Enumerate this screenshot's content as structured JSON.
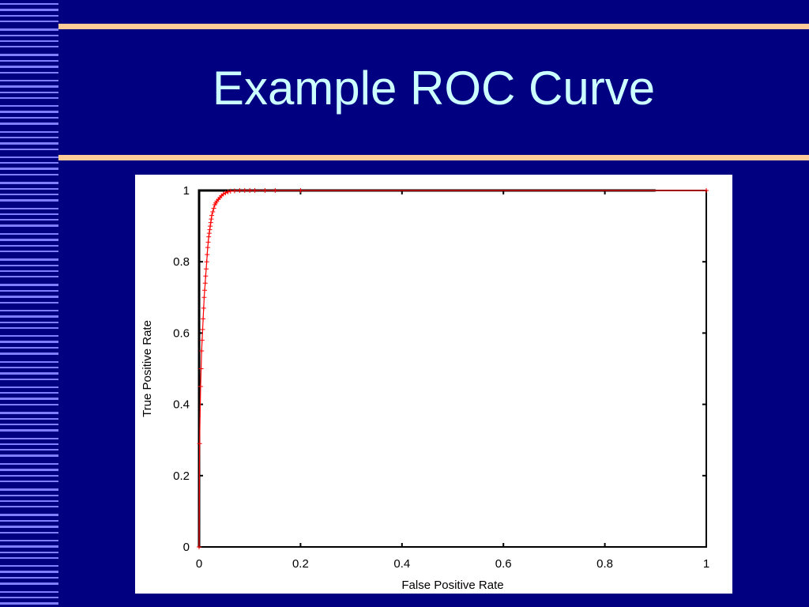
{
  "slide": {
    "title": "Example ROC Curve",
    "background_color": "#000080",
    "accent_color": "#FFCC99",
    "stripe_color": "#8080FF",
    "title_color": "#CCFFFF"
  },
  "chart_data": {
    "type": "line",
    "title": "",
    "xlabel": "False Positive Rate",
    "ylabel": "True Positive Rate",
    "xlim": [
      0,
      1
    ],
    "ylim": [
      0,
      1
    ],
    "x_ticks": [
      "0",
      "0.2",
      "0.4",
      "0.6",
      "0.8",
      "1"
    ],
    "y_ticks": [
      "0",
      "0.2",
      "0.4",
      "0.6",
      "0.8",
      "1"
    ],
    "grid": false,
    "legend": "none",
    "reference_lines": [
      {
        "points": [
          [
            0,
            0
          ],
          [
            0,
            1
          ],
          [
            0.9,
            1
          ]
        ],
        "color": "#000000"
      }
    ],
    "series": [
      {
        "color": "#FF0000",
        "marker": "plus",
        "x": [
          0,
          0.001,
          0.003,
          0.004,
          0.005,
          0.006,
          0.007,
          0.008,
          0.009,
          0.01,
          0.011,
          0.012,
          0.013,
          0.014,
          0.015,
          0.016,
          0.017,
          0.018,
          0.019,
          0.02,
          0.021,
          0.022,
          0.023,
          0.024,
          0.025,
          0.027,
          0.029,
          0.031,
          0.033,
          0.035,
          0.038,
          0.041,
          0.044,
          0.048,
          0.052,
          0.057,
          0.062,
          0.07,
          0.08,
          0.09,
          0.1,
          0.11,
          0.13,
          0.15,
          0.2,
          1
        ],
        "y": [
          0,
          0.29,
          0.45,
          0.5,
          0.55,
          0.58,
          0.61,
          0.64,
          0.67,
          0.7,
          0.72,
          0.74,
          0.76,
          0.78,
          0.8,
          0.82,
          0.84,
          0.855,
          0.87,
          0.88,
          0.89,
          0.9,
          0.91,
          0.92,
          0.93,
          0.94,
          0.95,
          0.96,
          0.965,
          0.97,
          0.975,
          0.98,
          0.985,
          0.99,
          0.993,
          0.996,
          0.998,
          0.999,
          1,
          1,
          1,
          1,
          1,
          1,
          1,
          1
        ]
      }
    ]
  }
}
